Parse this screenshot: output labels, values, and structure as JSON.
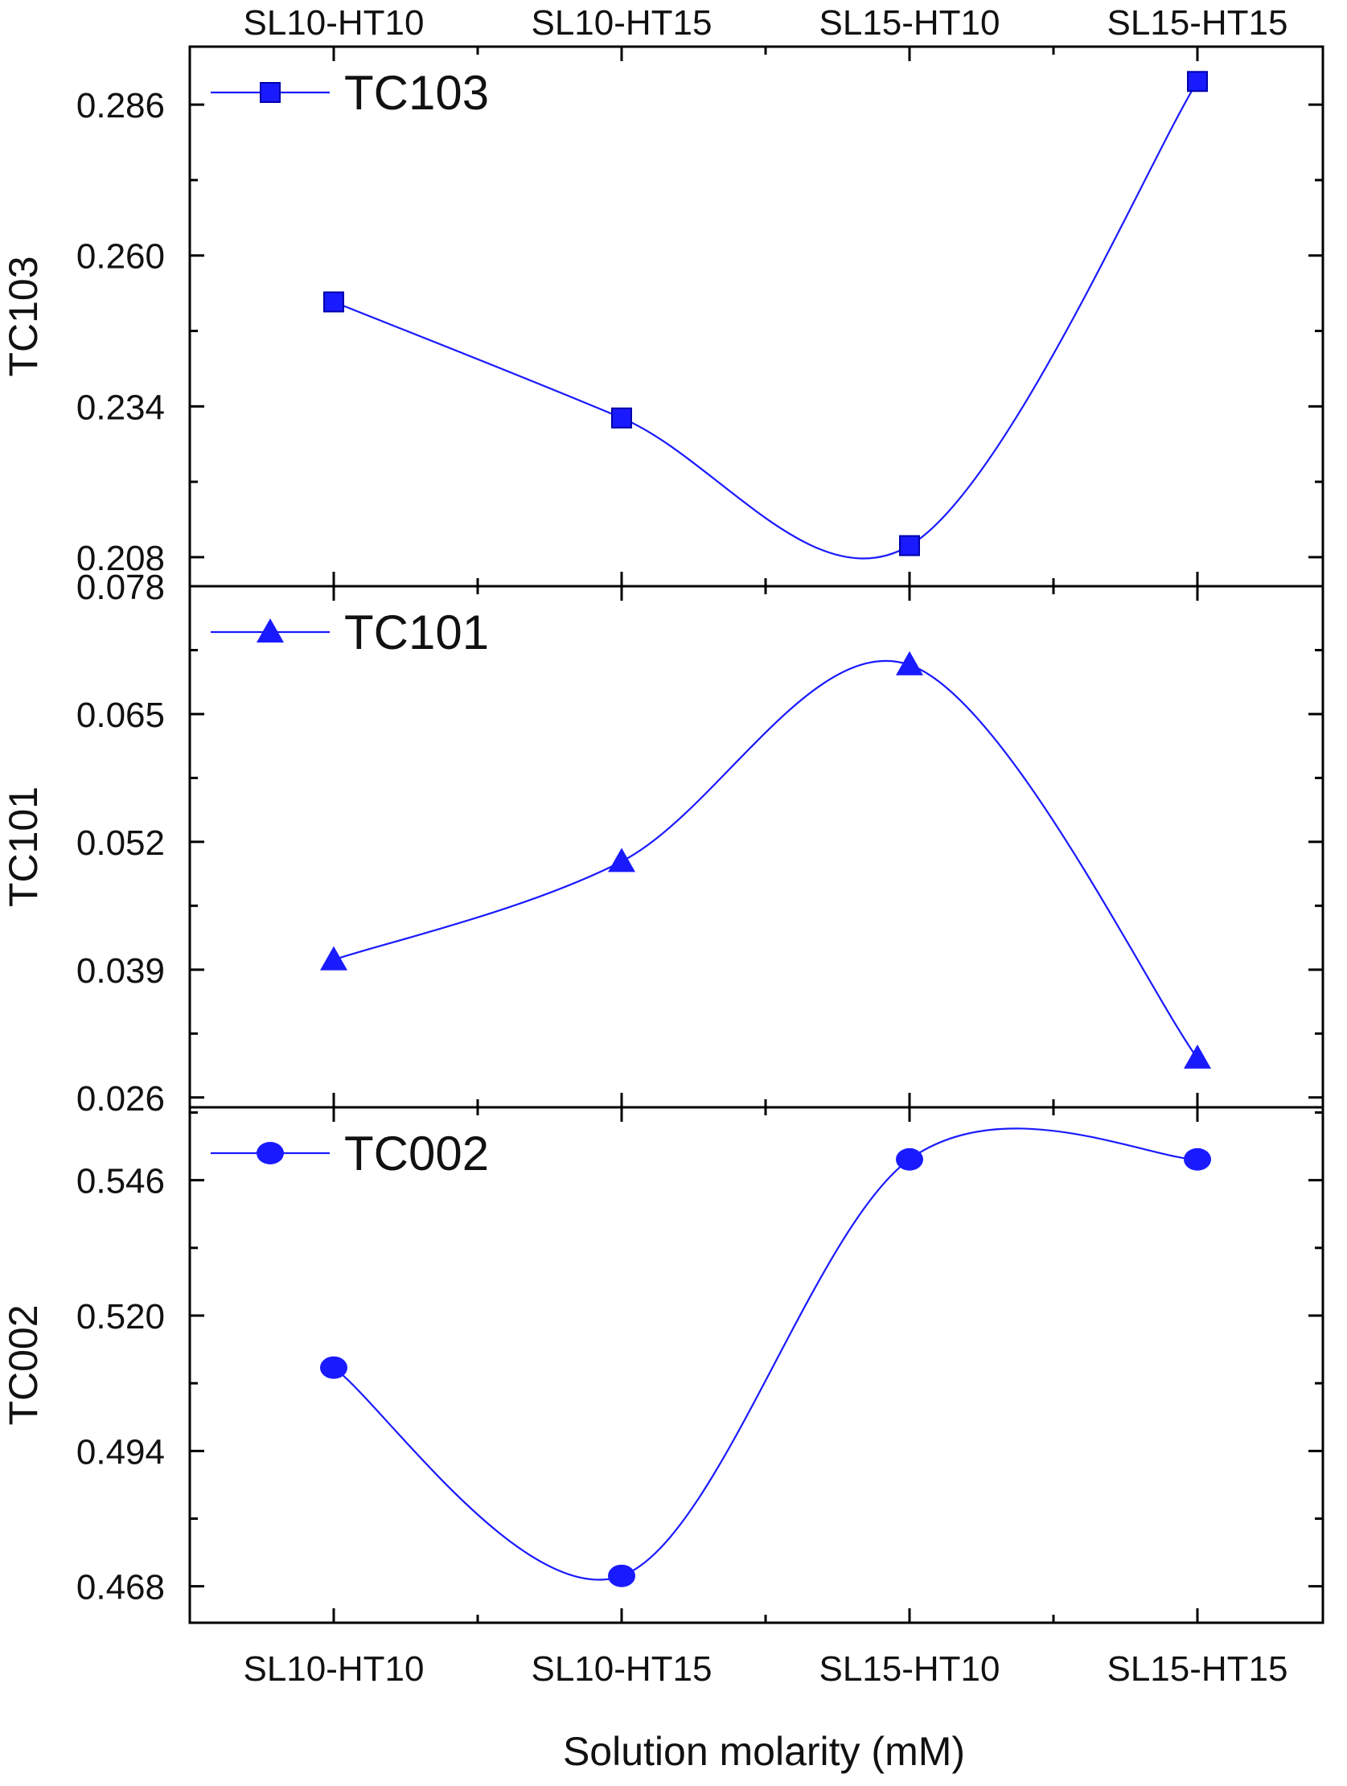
{
  "chart_data": {
    "type": "line",
    "xlabel": "Solution molarity (mM)",
    "categories": [
      "SL10-HT10",
      "SL10-HT15",
      "SL15-HT10",
      "SL15-HT15"
    ],
    "top_categories": [
      "SL10-HT10",
      "SL10-HT15",
      "SL15-HT10",
      "SL15-HT15"
    ],
    "series_color": "#1a1aff",
    "panels": [
      {
        "ylabel": "TC103",
        "legend": "TC103",
        "legend_position": "top-left",
        "marker": "square",
        "ylim": [
          0.203,
          0.296
        ],
        "ticks": [
          "0.286",
          "0.260",
          "0.234",
          "0.208"
        ],
        "series": [
          {
            "name": "TC103",
            "values": [
              0.252,
              0.232,
              0.21,
              0.29
            ]
          }
        ]
      },
      {
        "ylabel": "TC101",
        "legend": "TC101",
        "legend_position": "top-left",
        "marker": "triangle",
        "ylim": [
          0.025,
          0.078
        ],
        "ticks": [
          "0.078",
          "0.065",
          "0.052",
          "0.039",
          "0.026"
        ],
        "series": [
          {
            "name": "TC101",
            "values": [
              0.04,
              0.05,
              0.07,
              0.03
            ]
          }
        ]
      },
      {
        "ylabel": "TC002",
        "legend": "TC002",
        "legend_position": "top-left",
        "marker": "circle",
        "ylim": [
          0.461,
          0.56
        ],
        "ticks": [
          "0.546",
          "0.520",
          "0.494",
          "0.468"
        ],
        "series": [
          {
            "name": "TC002",
            "values": [
              0.51,
              0.47,
              0.55,
              0.55
            ]
          }
        ]
      }
    ]
  }
}
